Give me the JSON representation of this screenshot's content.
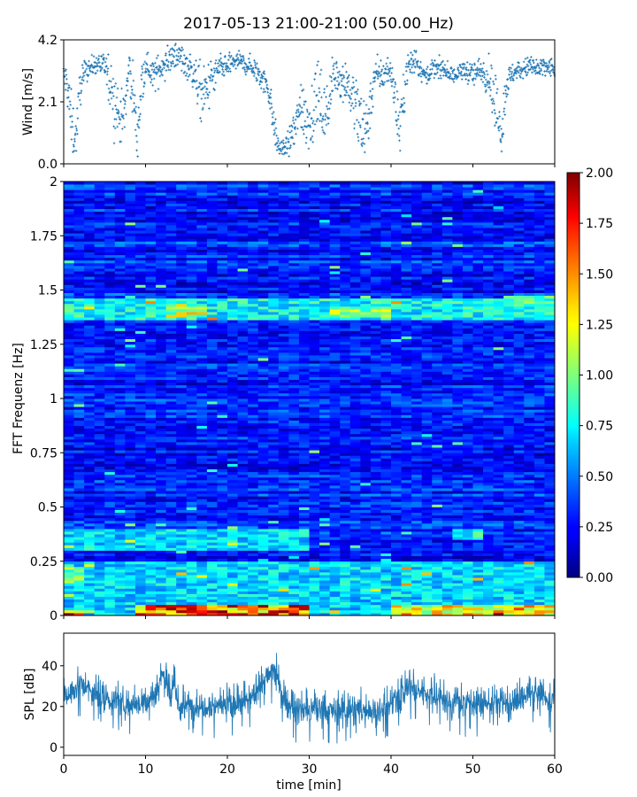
{
  "title": "2017-05-13 21:00-21:00 (50.00_Hz)",
  "colors": {
    "series": "#1f77b4",
    "axis": "#000000",
    "background": "#ffffff"
  },
  "chart_data": [
    {
      "id": "wind",
      "type": "scatter",
      "ylabel": "Wind [m/s]",
      "xlim": [
        0,
        60
      ],
      "ylim": [
        0.0,
        4.2
      ],
      "yticks": [
        0.0,
        2.1,
        4.2
      ],
      "ytick_labels": [
        "0.0",
        "2.1",
        "4.2"
      ],
      "marker": "+",
      "profile_x": [
        0,
        0.5,
        1,
        1.5,
        2,
        2.5,
        3,
        4,
        5,
        6,
        7,
        7.5,
        8,
        8.5,
        9,
        9.5,
        10,
        11,
        12,
        13,
        14,
        15,
        16,
        17,
        18,
        19,
        20,
        21,
        22,
        23,
        24,
        25,
        26,
        26.5,
        27,
        28,
        29,
        30,
        31,
        32,
        33,
        34,
        35,
        36,
        37,
        38,
        39,
        40,
        41,
        42,
        43,
        44,
        45,
        46,
        47,
        48,
        49,
        50,
        51,
        52,
        53,
        53.5,
        54,
        55,
        56,
        57,
        58,
        59,
        60
      ],
      "profile_median": [
        3.0,
        2.6,
        1.2,
        0.9,
        2.6,
        3.1,
        3.2,
        3.4,
        3.3,
        2.4,
        1.4,
        1.8,
        3.3,
        2.4,
        0.8,
        2.6,
        3.4,
        3.0,
        3.3,
        3.5,
        3.7,
        3.4,
        3.0,
        2.2,
        2.8,
        3.2,
        3.3,
        3.5,
        3.4,
        3.3,
        3.0,
        2.6,
        0.8,
        0.5,
        0.5,
        0.9,
        2.0,
        1.4,
        2.3,
        1.6,
        3.0,
        2.9,
        2.6,
        1.5,
        1.2,
        3.0,
        3.0,
        3.2,
        1.2,
        3.3,
        3.5,
        3.0,
        3.2,
        3.2,
        3.1,
        3.0,
        3.2,
        3.0,
        3.2,
        3.0,
        1.6,
        0.9,
        2.6,
        3.1,
        3.2,
        3.3,
        3.2,
        3.3,
        3.2
      ],
      "profile_spread": [
        0.4,
        0.8,
        0.9,
        0.6,
        0.6,
        0.3,
        0.3,
        0.3,
        0.4,
        0.9,
        0.8,
        0.8,
        0.4,
        1.0,
        0.6,
        0.8,
        0.3,
        0.5,
        0.4,
        0.4,
        0.4,
        0.4,
        0.6,
        0.9,
        0.6,
        0.4,
        0.3,
        0.3,
        0.3,
        0.3,
        0.4,
        0.5,
        0.4,
        0.2,
        0.3,
        0.6,
        1.0,
        1.0,
        1.0,
        1.0,
        0.5,
        0.6,
        0.8,
        1.0,
        1.0,
        0.5,
        0.5,
        0.4,
        1.0,
        0.4,
        0.4,
        0.3,
        0.3,
        0.3,
        0.3,
        0.3,
        0.3,
        0.4,
        0.4,
        0.6,
        1.0,
        0.6,
        0.6,
        0.3,
        0.3,
        0.3,
        0.3,
        0.3,
        0.3
      ]
    },
    {
      "id": "spectrogram",
      "type": "heatmap",
      "ylabel": "FFT Frequenz [Hz]",
      "xlim": [
        0,
        60
      ],
      "ylim": [
        0,
        2
      ],
      "yticks": [
        0,
        0.25,
        0.5,
        0.75,
        1,
        1.25,
        1.5,
        1.75,
        2
      ],
      "ytick_labels": [
        "0",
        "0.25",
        "0.5",
        "0.75",
        "1",
        "1.25",
        "1.5",
        "1.75",
        "2"
      ],
      "colormap": "jet",
      "clim": [
        0.0,
        2.0
      ],
      "colorbar_ticks": [
        0.0,
        0.25,
        0.5,
        0.75,
        1.0,
        1.25,
        1.5,
        1.75,
        2.0
      ],
      "colorbar_tick_labels": [
        "0.00",
        "0.25",
        "0.50",
        "0.75",
        "1.00",
        "1.25",
        "1.50",
        "1.75",
        "2.00"
      ],
      "base_level": 0.3,
      "features": [
        {
          "freq": [
            1.36,
            1.46
          ],
          "time": [
            0,
            60
          ],
          "level": 0.9
        },
        {
          "freq": [
            1.38,
            1.42
          ],
          "time": [
            13,
            17
          ],
          "level": 1.3
        },
        {
          "freq": [
            1.37,
            1.41
          ],
          "time": [
            32,
            40
          ],
          "level": 1.2
        },
        {
          "freq": [
            1.37,
            1.38
          ],
          "time": [
            5,
            9
          ],
          "level": 1.4
        },
        {
          "freq": [
            1.43,
            1.47
          ],
          "time": [
            54,
            60
          ],
          "level": 1.0
        },
        {
          "freq": [
            0.3,
            0.4
          ],
          "time": [
            0,
            30
          ],
          "level": 0.8
        },
        {
          "freq": [
            0.35,
            0.4
          ],
          "time": [
            47,
            51
          ],
          "level": 0.9
        },
        {
          "freq": [
            0.15,
            0.22
          ],
          "time": [
            0,
            2
          ],
          "level": 1.1
        },
        {
          "freq": [
            0.0,
            0.25
          ],
          "time": [
            0,
            60
          ],
          "level": 0.8
        },
        {
          "freq": [
            0.0,
            0.05
          ],
          "time": [
            9,
            30
          ],
          "level": 1.8
        },
        {
          "freq": [
            0.0,
            0.05
          ],
          "time": [
            40,
            60
          ],
          "level": 1.5
        },
        {
          "freq": [
            0.0,
            0.03
          ],
          "time": [
            0,
            3
          ],
          "level": 1.5
        }
      ]
    },
    {
      "id": "spl",
      "type": "line",
      "ylabel": "SPL [dB]",
      "xlabel": "time [min]",
      "xlim": [
        0,
        60
      ],
      "xticks": [
        0,
        10,
        20,
        30,
        40,
        50,
        60
      ],
      "xtick_labels": [
        "0",
        "10",
        "20",
        "30",
        "40",
        "50",
        "60"
      ],
      "ylim": [
        -4,
        56
      ],
      "yticks": [
        0,
        20,
        40
      ],
      "ytick_labels": [
        "0",
        "20",
        "40"
      ],
      "x": [
        0,
        1,
        2,
        3,
        4,
        5,
        6,
        7,
        8,
        9,
        10,
        11,
        11.5,
        12,
        12.5,
        13,
        13.5,
        14,
        15,
        16,
        17,
        18,
        19,
        20,
        21,
        22,
        23,
        24,
        25,
        25.5,
        26,
        26.5,
        27,
        28,
        29,
        30,
        31,
        32,
        33,
        34,
        35,
        36,
        37,
        38,
        39,
        40,
        41,
        42,
        43,
        44,
        45,
        46,
        47,
        48,
        49,
        50,
        51,
        52,
        53,
        54,
        55,
        56,
        57,
        58,
        59,
        60
      ],
      "center": [
        25,
        28,
        31,
        28,
        25,
        24,
        23,
        22,
        22,
        22,
        22,
        24,
        28,
        38,
        31,
        24,
        30,
        20,
        20,
        20,
        21,
        21,
        21,
        21,
        20,
        22,
        24,
        30,
        35,
        38,
        36,
        30,
        22,
        19,
        18,
        18,
        18,
        18,
        18,
        18,
        18,
        19,
        18,
        18,
        18,
        21,
        24,
        30,
        28,
        27,
        27,
        24,
        22,
        22,
        22,
        23,
        21,
        22,
        22,
        21,
        21,
        24,
        26,
        25,
        24,
        24
      ],
      "half_band": 7
    }
  ]
}
